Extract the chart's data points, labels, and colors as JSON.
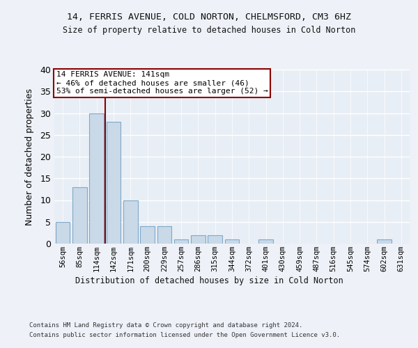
{
  "title1": "14, FERRIS AVENUE, COLD NORTON, CHELMSFORD, CM3 6HZ",
  "title2": "Size of property relative to detached houses in Cold Norton",
  "xlabel": "Distribution of detached houses by size in Cold Norton",
  "ylabel": "Number of detached properties",
  "bin_labels": [
    "56sqm",
    "85sqm",
    "114sqm",
    "142sqm",
    "171sqm",
    "200sqm",
    "229sqm",
    "257sqm",
    "286sqm",
    "315sqm",
    "344sqm",
    "372sqm",
    "401sqm",
    "430sqm",
    "459sqm",
    "487sqm",
    "516sqm",
    "545sqm",
    "574sqm",
    "602sqm",
    "631sqm"
  ],
  "bar_values": [
    5,
    13,
    30,
    28,
    10,
    4,
    4,
    1,
    2,
    2,
    1,
    0,
    1,
    0,
    0,
    0,
    0,
    0,
    0,
    1,
    0
  ],
  "bar_color": "#c9d9e8",
  "bar_edge_color": "#7fa8c8",
  "vline_index": 2,
  "vline_color": "#8b0000",
  "annotation_line1": "14 FERRIS AVENUE: 141sqm",
  "annotation_line2": "← 46% of detached houses are smaller (46)",
  "annotation_line3": "53% of semi-detached houses are larger (52) →",
  "annotation_box_color": "#8b0000",
  "annotation_fill": "#ffffff",
  "ylim": [
    0,
    40
  ],
  "yticks": [
    0,
    5,
    10,
    15,
    20,
    25,
    30,
    35,
    40
  ],
  "footer1": "Contains HM Land Registry data © Crown copyright and database right 2024.",
  "footer2": "Contains public sector information licensed under the Open Government Licence v3.0.",
  "bg_color": "#eef2f8",
  "plot_bg_color": "#e8eef5"
}
